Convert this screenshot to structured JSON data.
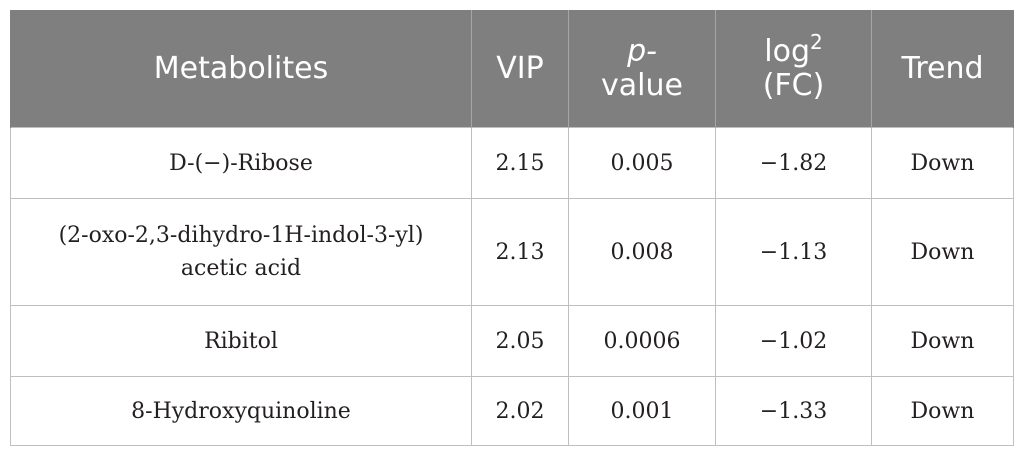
{
  "table": {
    "headers": {
      "metabolites": "Metabolites",
      "vip": "VIP",
      "pvalue_p": "p-",
      "pvalue_value": "value",
      "log_log": "log",
      "log_sup": "2",
      "log_fc": "(FC)",
      "trend": "Trend"
    },
    "rows": [
      {
        "metabolite_line1": "D-(−)-Ribose",
        "metabolite_line2": "",
        "vip": "2.15",
        "pvalue": "0.005",
        "log2fc": "−1.82",
        "trend": "Down"
      },
      {
        "metabolite_line1": "(2-oxo-2,3-dihydro-1H-indol-3-yl)",
        "metabolite_line2": "acetic acid",
        "vip": "2.13",
        "pvalue": "0.008",
        "log2fc": "−1.13",
        "trend": "Down"
      },
      {
        "metabolite_line1": "Ribitol",
        "metabolite_line2": "",
        "vip": "2.05",
        "pvalue": "0.0006",
        "log2fc": "−1.02",
        "trend": "Down"
      },
      {
        "metabolite_line1": "8-Hydroxyquinoline",
        "metabolite_line2": "",
        "vip": "2.02",
        "pvalue": "0.001",
        "log2fc": "−1.33",
        "trend": "Down"
      }
    ]
  }
}
